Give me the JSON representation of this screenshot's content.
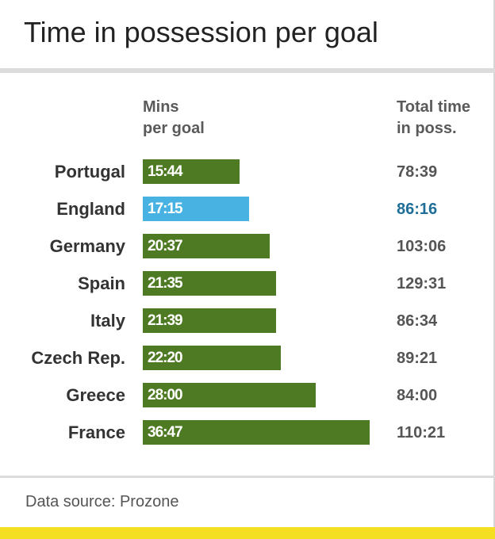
{
  "colors": {
    "bar_default": "#4e7a23",
    "bar_highlight": "#48b2e2",
    "total_highlight": "#1f6e98",
    "accent_strip": "#f4df22"
  },
  "chart_data": {
    "type": "bar",
    "orientation": "horizontal",
    "title": "Time in possession per goal",
    "column_header_bars": [
      "Mins",
      "per goal"
    ],
    "column_header_totals": [
      "Total time",
      "in poss."
    ],
    "categories": [
      "Portugal",
      "England",
      "Germany",
      "Spain",
      "Italy",
      "Czech Rep.",
      "Greece",
      "France"
    ],
    "values_label": [
      "15:44",
      "17:15",
      "20:37",
      "21:35",
      "21:39",
      "22:20",
      "28:00",
      "36:47"
    ],
    "values_minutes": [
      15.73,
      17.25,
      20.62,
      21.58,
      21.65,
      22.33,
      28.0,
      36.78
    ],
    "totals": [
      "78:39",
      "86:16",
      "103:06",
      "129:31",
      "86:34",
      "89:21",
      "84:00",
      "110:21"
    ],
    "highlight": "England",
    "xlim": [
      0,
      36.78
    ],
    "grid": false,
    "source": "Data source: Prozone"
  }
}
